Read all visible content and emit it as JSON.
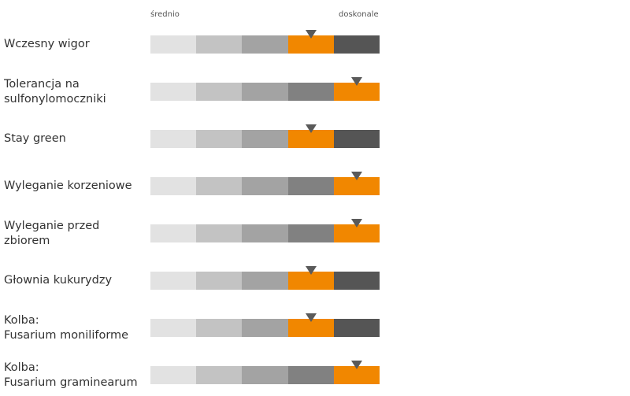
{
  "chart_data": {
    "type": "rating-scale",
    "scale_min_label": "średnio",
    "scale_max_label": "doskonale",
    "levels": 5,
    "segment_colors": [
      "#e2e2e2",
      "#c3c3c3",
      "#a3a3a3",
      "#818181",
      "#555555"
    ],
    "highlight_color": "#f18700",
    "marker_color": "#5a5a5a",
    "rows": [
      {
        "label": "Wczesny wigor",
        "rating": 4
      },
      {
        "label": "Tolerancja na\nsulfonylomoczniki",
        "rating": 5
      },
      {
        "label": "Stay green",
        "rating": 4
      },
      {
        "label": "Wyleganie korzeniowe",
        "rating": 5
      },
      {
        "label": "Wyleganie przed\nzbiorem",
        "rating": 5
      },
      {
        "label": "Głownia kukurydzy",
        "rating": 4
      },
      {
        "label": "Kolba:\nFusarium moniliforme",
        "rating": 4
      },
      {
        "label": "Kolba:\nFusarium graminearum",
        "rating": 5
      }
    ]
  }
}
